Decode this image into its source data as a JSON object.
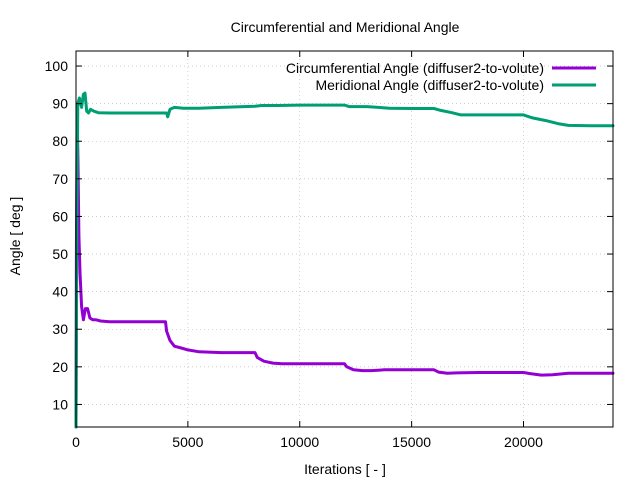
{
  "chart_data": {
    "type": "line",
    "title": "Circumferential and Meridional Angle",
    "xlabel": "Iterations [ - ]",
    "ylabel": "Angle [ deg ]",
    "xlim": [
      0,
      24000
    ],
    "ylim": [
      4,
      104
    ],
    "xticks": [
      0,
      5000,
      10000,
      15000,
      20000
    ],
    "yticks": [
      10,
      20,
      30,
      40,
      50,
      60,
      70,
      80,
      90,
      100
    ],
    "grid": true,
    "legend_position": "top-right",
    "series": [
      {
        "name": "Circumferential Angle (diffuser2-to-volute)",
        "color": "#9400d3",
        "points": [
          [
            0,
            4
          ],
          [
            20,
            50
          ],
          [
            50,
            88
          ],
          [
            90,
            74
          ],
          [
            130,
            55
          ],
          [
            180,
            45
          ],
          [
            250,
            36
          ],
          [
            330,
            32.5
          ],
          [
            420,
            35.5
          ],
          [
            520,
            35.5
          ],
          [
            620,
            33
          ],
          [
            750,
            32.5
          ],
          [
            900,
            32.5
          ],
          [
            1100,
            32.2
          ],
          [
            1500,
            32
          ],
          [
            2500,
            32
          ],
          [
            3500,
            32
          ],
          [
            4000,
            32
          ],
          [
            4050,
            29.5
          ],
          [
            4200,
            27
          ],
          [
            4400,
            25.5
          ],
          [
            4700,
            25
          ],
          [
            5000,
            24.5
          ],
          [
            5500,
            24
          ],
          [
            6500,
            23.8
          ],
          [
            7500,
            23.8
          ],
          [
            8000,
            23.8
          ],
          [
            8100,
            22.5
          ],
          [
            8400,
            21.5
          ],
          [
            8800,
            21
          ],
          [
            9200,
            20.8
          ],
          [
            10000,
            20.8
          ],
          [
            11000,
            20.8
          ],
          [
            12000,
            20.8
          ],
          [
            12100,
            20
          ],
          [
            12400,
            19.2
          ],
          [
            12800,
            19
          ],
          [
            13200,
            19
          ],
          [
            13800,
            19.2
          ],
          [
            15000,
            19.2
          ],
          [
            16000,
            19.2
          ],
          [
            16200,
            18.6
          ],
          [
            16600,
            18.3
          ],
          [
            17000,
            18.4
          ],
          [
            18000,
            18.5
          ],
          [
            20000,
            18.5
          ],
          [
            20300,
            18.2
          ],
          [
            20800,
            17.8
          ],
          [
            21300,
            17.9
          ],
          [
            22000,
            18.3
          ],
          [
            23000,
            18.3
          ],
          [
            24000,
            18.3
          ]
        ]
      },
      {
        "name": "Meridional Angle (diffuser2-to-volute)",
        "color": "#009e73",
        "points": [
          [
            0,
            4
          ],
          [
            40,
            60
          ],
          [
            80,
            90
          ],
          [
            150,
            91.5
          ],
          [
            250,
            89
          ],
          [
            330,
            92.5
          ],
          [
            400,
            92.8
          ],
          [
            480,
            88
          ],
          [
            560,
            87.5
          ],
          [
            650,
            88.5
          ],
          [
            800,
            88
          ],
          [
            1000,
            87.6
          ],
          [
            1500,
            87.5
          ],
          [
            2500,
            87.5
          ],
          [
            3500,
            87.5
          ],
          [
            4050,
            87.5
          ],
          [
            4100,
            86.5
          ],
          [
            4200,
            88.5
          ],
          [
            4400,
            89
          ],
          [
            4800,
            88.8
          ],
          [
            5500,
            88.8
          ],
          [
            6500,
            89
          ],
          [
            7500,
            89.2
          ],
          [
            8000,
            89.3
          ],
          [
            8300,
            89.5
          ],
          [
            9000,
            89.5
          ],
          [
            10000,
            89.6
          ],
          [
            11000,
            89.6
          ],
          [
            12000,
            89.6
          ],
          [
            12200,
            89.2
          ],
          [
            13000,
            89.2
          ],
          [
            14000,
            88.8
          ],
          [
            15000,
            88.7
          ],
          [
            16000,
            88.7
          ],
          [
            16300,
            88.2
          ],
          [
            16800,
            87.6
          ],
          [
            17200,
            87
          ],
          [
            18000,
            87
          ],
          [
            19000,
            87
          ],
          [
            20000,
            87
          ],
          [
            20400,
            86.2
          ],
          [
            21000,
            85.5
          ],
          [
            21600,
            84.6
          ],
          [
            22000,
            84.2
          ],
          [
            23000,
            84.1
          ],
          [
            24000,
            84.1
          ]
        ]
      }
    ]
  }
}
